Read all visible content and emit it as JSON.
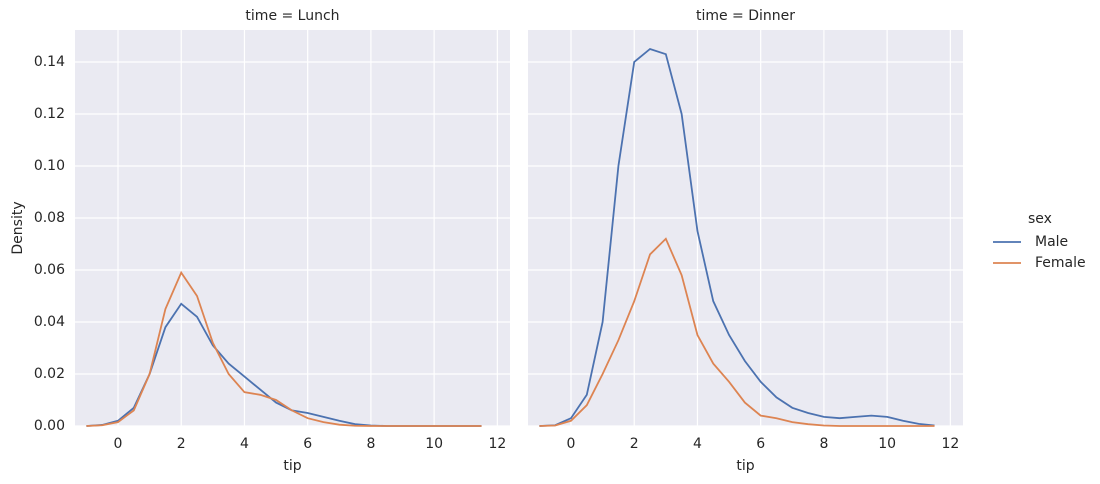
{
  "chart_data": [
    {
      "type": "line",
      "title": "time = Lunch",
      "xlabel": "tip",
      "ylabel": "Density",
      "legend_title": "sex",
      "legend": "right",
      "grid": true,
      "x": [
        -1,
        -0.5,
        0,
        0.5,
        1,
        1.5,
        2,
        2.5,
        3,
        3.5,
        4,
        4.5,
        5,
        5.5,
        6,
        6.5,
        7,
        7.5,
        8,
        8.5,
        9,
        9.5,
        10,
        10.5,
        11,
        11.5
      ],
      "series": [
        {
          "name": "Male",
          "color": "#4c72b0",
          "values": [
            0,
            0.0004,
            0.002,
            0.007,
            0.02,
            0.038,
            0.047,
            0.042,
            0.031,
            0.024,
            0.019,
            0.014,
            0.009,
            0.006,
            0.005,
            0.0035,
            0.002,
            0.0007,
            0.0002,
            0,
            0,
            0,
            0,
            0,
            0,
            0
          ]
        },
        {
          "name": "Female",
          "color": "#dd8452",
          "values": [
            0,
            0.0003,
            0.0015,
            0.006,
            0.02,
            0.045,
            0.059,
            0.05,
            0.032,
            0.02,
            0.013,
            0.012,
            0.01,
            0.006,
            0.003,
            0.0015,
            0.0005,
            0.0001,
            0,
            0,
            0,
            0,
            0,
            0,
            0,
            0
          ]
        }
      ],
      "xlim": [
        -1.36,
        12.4
      ],
      "xticks": [
        0,
        2,
        4,
        6,
        8,
        10,
        12
      ],
      "ylim": [
        0,
        0.1523
      ],
      "yticks": [
        {
          "value": 0,
          "label": "0.00"
        },
        {
          "value": 0.02,
          "label": "0.02"
        },
        {
          "value": 0.04,
          "label": "0.04"
        },
        {
          "value": 0.06,
          "label": "0.06"
        },
        {
          "value": 0.08,
          "label": "0.08"
        },
        {
          "value": 0.1,
          "label": "0.10"
        },
        {
          "value": 0.12,
          "label": "0.12"
        },
        {
          "value": 0.14,
          "label": "0.14"
        }
      ]
    },
    {
      "type": "line",
      "title": "time = Dinner",
      "xlabel": "tip",
      "grid": true,
      "x": [
        -1,
        -0.5,
        0,
        0.5,
        1,
        1.5,
        2,
        2.5,
        3,
        3.5,
        4,
        4.5,
        5,
        5.5,
        6,
        6.5,
        7,
        7.5,
        8,
        8.5,
        9,
        9.5,
        10,
        10.5,
        11,
        11.5
      ],
      "series": [
        {
          "name": "Male",
          "color": "#4c72b0",
          "values": [
            0,
            0.0003,
            0.003,
            0.012,
            0.04,
            0.1,
            0.14,
            0.145,
            0.143,
            0.12,
            0.075,
            0.048,
            0.035,
            0.025,
            0.017,
            0.011,
            0.007,
            0.005,
            0.0035,
            0.003,
            0.0035,
            0.004,
            0.0035,
            0.002,
            0.0008,
            0.0002
          ]
        },
        {
          "name": "Female",
          "color": "#dd8452",
          "values": [
            0,
            0.0002,
            0.002,
            0.008,
            0.02,
            0.033,
            0.048,
            0.066,
            0.072,
            0.058,
            0.035,
            0.024,
            0.017,
            0.009,
            0.004,
            0.003,
            0.0015,
            0.0007,
            0.0002,
            0,
            0,
            0,
            0,
            0,
            0,
            0
          ]
        }
      ],
      "xlim": [
        -1.36,
        12.4
      ],
      "xticks": [
        0,
        2,
        4,
        6,
        8,
        10,
        12
      ],
      "ylim": [
        0,
        0.1523
      ],
      "yticks": [
        0,
        0.02,
        0.04,
        0.06,
        0.08,
        0.1,
        0.12,
        0.14
      ]
    }
  ]
}
